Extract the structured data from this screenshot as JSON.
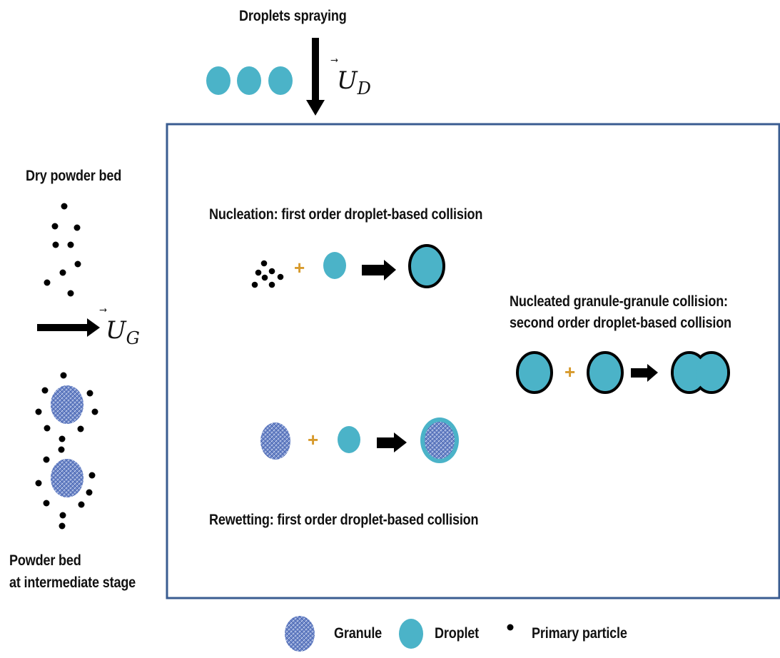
{
  "labels": {
    "droplets_spraying": "Droplets spraying",
    "dry_powder_bed": "Dry powder bed",
    "nucleation": "Nucleation:  first order droplet-based collision",
    "nucleated_line1": "Nucleated granule-granule collision:",
    "nucleated_line2": "second order droplet-based collision",
    "rewetting": "Rewetting: first order droplet-based collision",
    "powder_bed_line1": "Powder bed",
    "powder_bed_line2": "at intermediate stage"
  },
  "velocities": {
    "droplet_velocity": {
      "symbol": "U",
      "subscript": "D"
    },
    "granule_velocity": {
      "symbol": "U",
      "subscript": "G"
    }
  },
  "operators": {
    "plus": "+"
  },
  "legend": {
    "granule": "Granule",
    "droplet": "Droplet",
    "primary_particle": "Primary particle"
  },
  "colors": {
    "droplet": "#4bb3c8",
    "granule": "#5a79c0",
    "chamber_border": "#3a5c91",
    "particle": "#000000",
    "plus": "#d79a2c"
  }
}
